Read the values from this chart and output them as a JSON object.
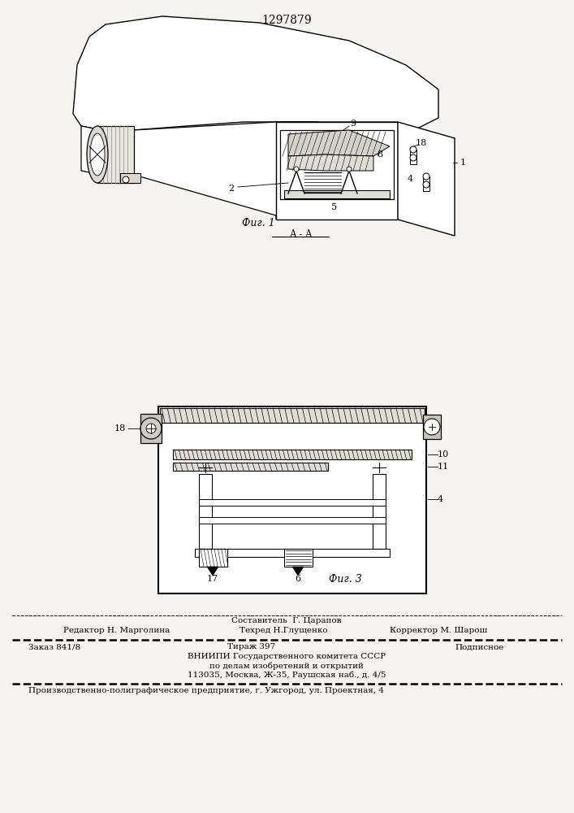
{
  "patent_number": "1297879",
  "bg": "#f5f4f0",
  "fig1_label": "Фиг. 1",
  "fig3_label": "Фиг. 3",
  "section_label": "A - A",
  "lbl_1": "1",
  "lbl_2": "2",
  "lbl_4": "4",
  "lbl_5": "5",
  "lbl_6": "6",
  "lbl_8": "8",
  "lbl_9": "9",
  "lbl_10": "10",
  "lbl_11": "11",
  "lbl_17": "17",
  "lbl_18": "18",
  "footer_line1": "Составитель  Г. Царапов",
  "footer_line2_left": "Редактор Н. Марголина",
  "footer_line2_mid": "Техред Н.Глущенко",
  "footer_line2_right": "Корректор М. Шарош",
  "footer_line3_left": "Заказ 841/8",
  "footer_line3_mid": "Тираж 397",
  "footer_line3_right": "Подписное",
  "footer_line4": "ВНИИПИ Государственного комитета СССР",
  "footer_line5": "по делам изобретений и открытий",
  "footer_line6": "113035, Москва, Ж-35, Раушская наб., д. 4/5",
  "footer_line7": "Производственно-полиграфическое предприятие, г. Ужгород, ул. Проектная, 4"
}
